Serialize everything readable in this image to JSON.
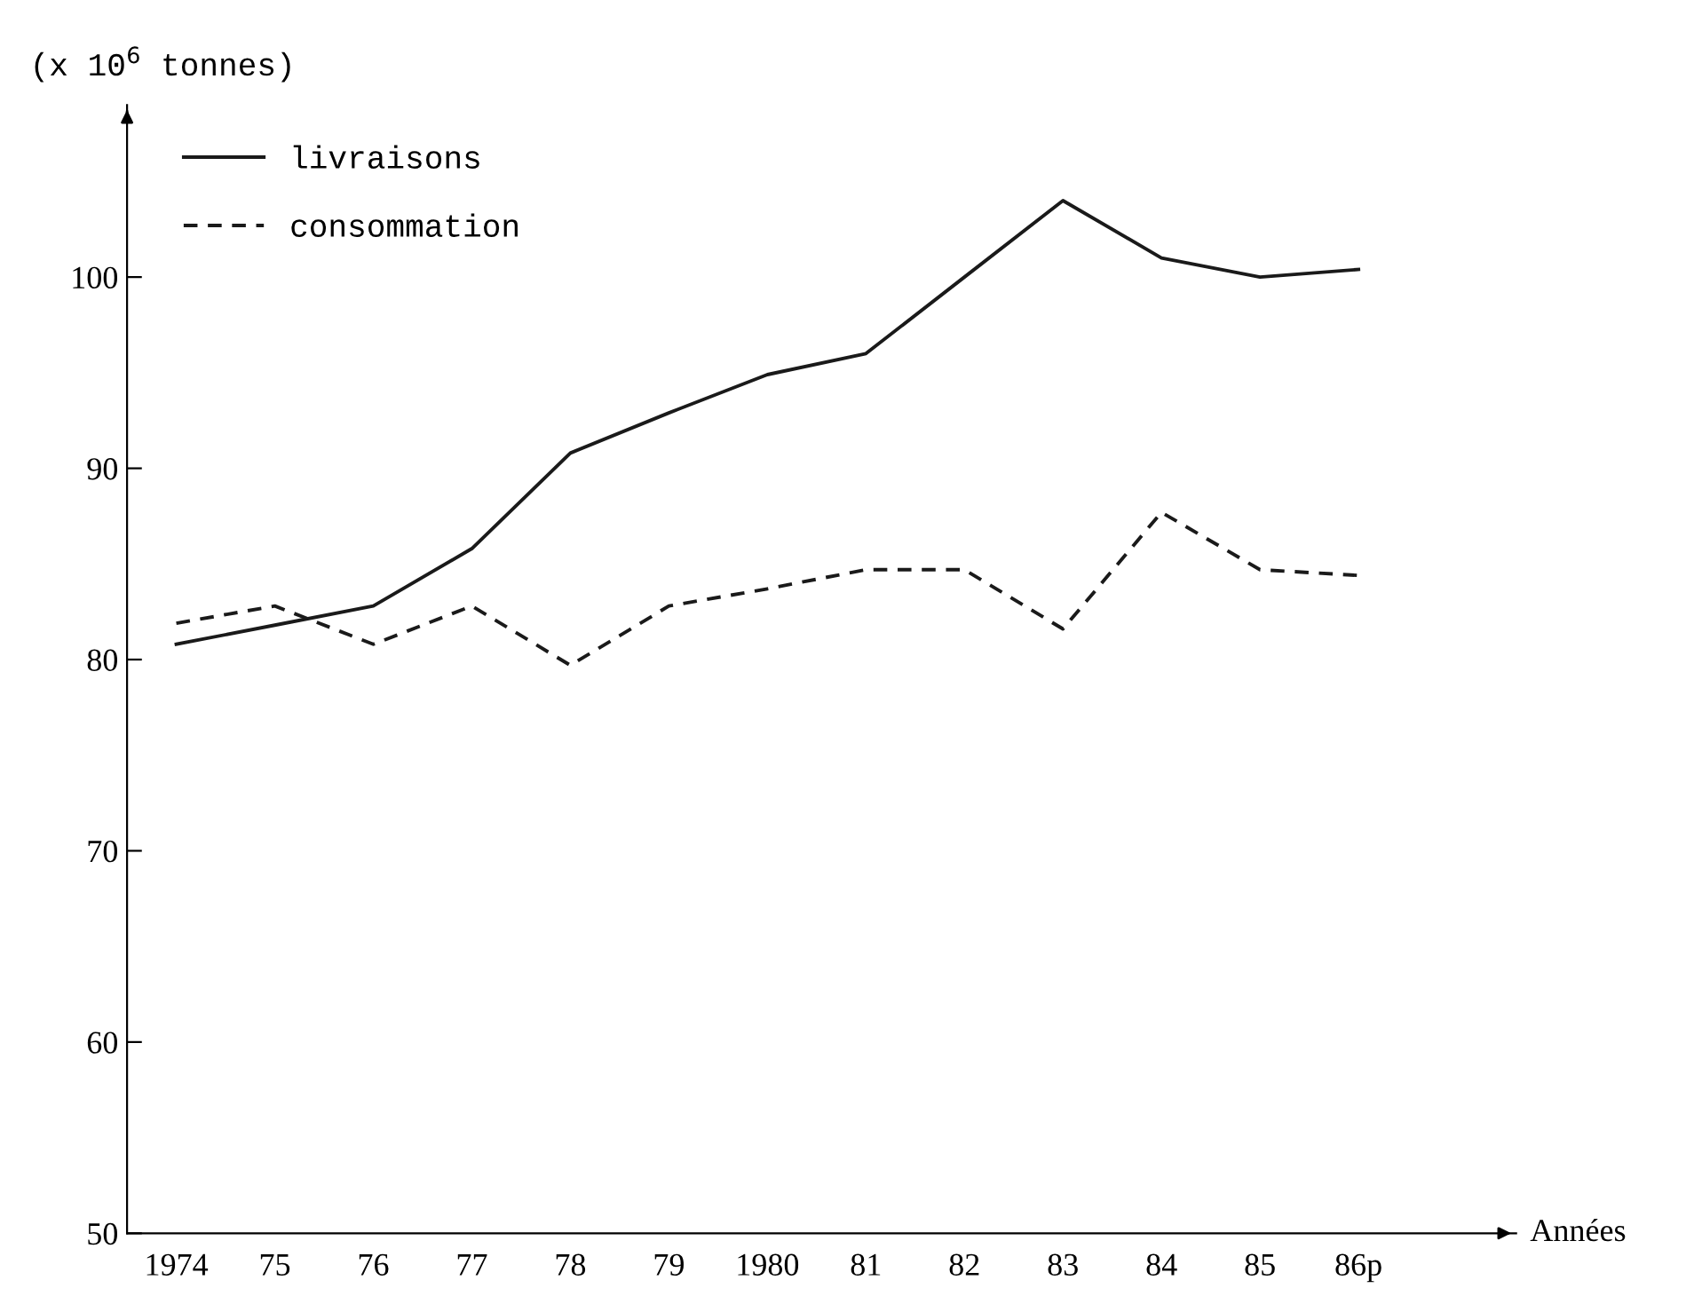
{
  "chart_data": {
    "type": "line",
    "ylabel": "(x 10$^{6}$ tonnes)",
    "xlabel": "Années",
    "categories": [
      "1974",
      "75",
      "76",
      "77",
      "78",
      "79",
      "1980",
      "81",
      "82",
      "83",
      "84",
      "85",
      "86p"
    ],
    "series": [
      {
        "name": "livraisons",
        "color": "#1a1a1a",
        "line_style": "solid",
        "values": [
          80.8,
          81.8,
          82.8,
          85.8,
          90.8,
          92.9,
          94.9,
          96.0,
          100.0,
          104.0,
          101.0,
          100.0,
          100.4
        ]
      },
      {
        "name": "consommation",
        "color": "#1a1a1a",
        "line_style": "dashed",
        "values": [
          81.9,
          82.8,
          80.8,
          82.8,
          79.7,
          82.8,
          83.7,
          84.7,
          84.7,
          81.6,
          87.7,
          84.7,
          84.4
        ]
      }
    ],
    "ylim": [
      50,
      109
    ],
    "yticks": [
      50,
      60,
      70,
      80,
      90,
      100
    ],
    "legend": "top left"
  }
}
